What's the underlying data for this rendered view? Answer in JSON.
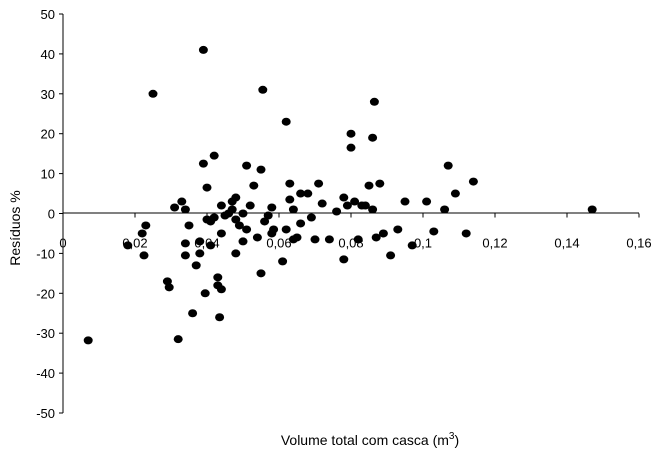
{
  "chart_data": {
    "type": "scatter",
    "title": "",
    "xlabel": "Volume total com casca (m",
    "xlabel_sup": "3",
    "xlabel_end": ")",
    "ylabel": "Resíduos %",
    "xlim": [
      0,
      0.16
    ],
    "ylim": [
      -50,
      50
    ],
    "x_ticks": [
      0,
      0.02,
      0.04,
      0.06,
      0.08,
      0.1,
      0.12,
      0.14,
      0.16
    ],
    "x_tick_labels": [
      "0",
      "0,02",
      "0,04",
      "0,06",
      "0,08",
      "0,1",
      "0,12",
      "0,14",
      "0,16"
    ],
    "y_ticks": [
      50,
      40,
      30,
      20,
      10,
      0,
      -10,
      -20,
      -30,
      -40,
      -50
    ],
    "y_tick_labels": [
      "50",
      "40",
      "30",
      "20",
      "10",
      "0",
      "-10",
      "-20",
      "-30",
      "-40",
      "-50"
    ],
    "grid": false,
    "marker_color": "#000000",
    "points": [
      {
        "x": 0.007,
        "y": -31.8
      },
      {
        "x": 0.018,
        "y": -8
      },
      {
        "x": 0.022,
        "y": -5
      },
      {
        "x": 0.0225,
        "y": -10.5
      },
      {
        "x": 0.023,
        "y": -3
      },
      {
        "x": 0.025,
        "y": 30
      },
      {
        "x": 0.029,
        "y": -17
      },
      {
        "x": 0.0295,
        "y": -18.5
      },
      {
        "x": 0.031,
        "y": 1.5
      },
      {
        "x": 0.032,
        "y": -31.5
      },
      {
        "x": 0.033,
        "y": 3
      },
      {
        "x": 0.034,
        "y": 1
      },
      {
        "x": 0.034,
        "y": -7.5
      },
      {
        "x": 0.034,
        "y": -10.5
      },
      {
        "x": 0.035,
        "y": -3
      },
      {
        "x": 0.036,
        "y": -25
      },
      {
        "x": 0.037,
        "y": -13
      },
      {
        "x": 0.038,
        "y": -10
      },
      {
        "x": 0.038,
        "y": -7
      },
      {
        "x": 0.039,
        "y": 12.5
      },
      {
        "x": 0.039,
        "y": 41
      },
      {
        "x": 0.0395,
        "y": -20
      },
      {
        "x": 0.04,
        "y": 6.5
      },
      {
        "x": 0.04,
        "y": -1.5
      },
      {
        "x": 0.041,
        "y": -2
      },
      {
        "x": 0.041,
        "y": -8
      },
      {
        "x": 0.042,
        "y": 14.5
      },
      {
        "x": 0.042,
        "y": -1
      },
      {
        "x": 0.043,
        "y": -16
      },
      {
        "x": 0.043,
        "y": -18
      },
      {
        "x": 0.0435,
        "y": -26
      },
      {
        "x": 0.044,
        "y": -19
      },
      {
        "x": 0.044,
        "y": -5
      },
      {
        "x": 0.044,
        "y": 2
      },
      {
        "x": 0.045,
        "y": -0.5
      },
      {
        "x": 0.046,
        "y": 0
      },
      {
        "x": 0.047,
        "y": 3
      },
      {
        "x": 0.047,
        "y": 1
      },
      {
        "x": 0.048,
        "y": 4
      },
      {
        "x": 0.048,
        "y": -1.5
      },
      {
        "x": 0.048,
        "y": -10
      },
      {
        "x": 0.049,
        "y": -3
      },
      {
        "x": 0.05,
        "y": -7
      },
      {
        "x": 0.05,
        "y": 0
      },
      {
        "x": 0.051,
        "y": 12
      },
      {
        "x": 0.051,
        "y": -4
      },
      {
        "x": 0.052,
        "y": 2
      },
      {
        "x": 0.053,
        "y": 7
      },
      {
        "x": 0.054,
        "y": -6
      },
      {
        "x": 0.055,
        "y": 11
      },
      {
        "x": 0.055,
        "y": -15
      },
      {
        "x": 0.0555,
        "y": 31
      },
      {
        "x": 0.056,
        "y": -2
      },
      {
        "x": 0.057,
        "y": -0.5
      },
      {
        "x": 0.058,
        "y": -5
      },
      {
        "x": 0.058,
        "y": 1.5
      },
      {
        "x": 0.0585,
        "y": -4
      },
      {
        "x": 0.061,
        "y": -12
      },
      {
        "x": 0.062,
        "y": 23
      },
      {
        "x": 0.062,
        "y": -4
      },
      {
        "x": 0.063,
        "y": 7.5
      },
      {
        "x": 0.063,
        "y": 3.5
      },
      {
        "x": 0.064,
        "y": -6.5
      },
      {
        "x": 0.064,
        "y": 1
      },
      {
        "x": 0.065,
        "y": -6
      },
      {
        "x": 0.066,
        "y": 5
      },
      {
        "x": 0.066,
        "y": -2.5
      },
      {
        "x": 0.068,
        "y": 5
      },
      {
        "x": 0.069,
        "y": -1
      },
      {
        "x": 0.07,
        "y": -6.5
      },
      {
        "x": 0.071,
        "y": 7.5
      },
      {
        "x": 0.072,
        "y": 2.5
      },
      {
        "x": 0.074,
        "y": -6.5
      },
      {
        "x": 0.076,
        "y": 0.5
      },
      {
        "x": 0.078,
        "y": 4
      },
      {
        "x": 0.078,
        "y": -11.5
      },
      {
        "x": 0.079,
        "y": 2
      },
      {
        "x": 0.08,
        "y": 20
      },
      {
        "x": 0.08,
        "y": 16.5
      },
      {
        "x": 0.081,
        "y": 3
      },
      {
        "x": 0.082,
        "y": -6.5
      },
      {
        "x": 0.083,
        "y": 2
      },
      {
        "x": 0.084,
        "y": 2
      },
      {
        "x": 0.085,
        "y": 7
      },
      {
        "x": 0.086,
        "y": 19
      },
      {
        "x": 0.0865,
        "y": 28
      },
      {
        "x": 0.086,
        "y": 1
      },
      {
        "x": 0.087,
        "y": -6
      },
      {
        "x": 0.088,
        "y": 7.5
      },
      {
        "x": 0.089,
        "y": -5
      },
      {
        "x": 0.091,
        "y": -10.5
      },
      {
        "x": 0.093,
        "y": -4
      },
      {
        "x": 0.095,
        "y": 3
      },
      {
        "x": 0.097,
        "y": -8
      },
      {
        "x": 0.101,
        "y": 3
      },
      {
        "x": 0.103,
        "y": -4.5
      },
      {
        "x": 0.106,
        "y": 1
      },
      {
        "x": 0.107,
        "y": 12
      },
      {
        "x": 0.109,
        "y": 5
      },
      {
        "x": 0.112,
        "y": -5
      },
      {
        "x": 0.114,
        "y": 8
      },
      {
        "x": 0.147,
        "y": 1
      }
    ]
  }
}
